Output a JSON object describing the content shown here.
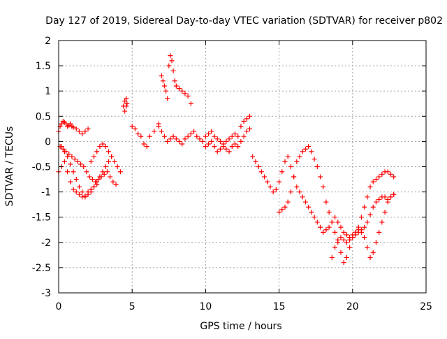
{
  "chart_data": {
    "type": "scatter",
    "title": "Day 127 of 2019, Sidereal Day-to-day VTEC variation (SDTVAR) for receiver p802",
    "xlabel": "GPS time / hours",
    "ylabel": "SDTVAR / TECUs",
    "xlim": [
      0,
      25
    ],
    "ylim": [
      -3,
      2
    ],
    "x_ticks": [
      0,
      5,
      10,
      15,
      20,
      25
    ],
    "x_tick_labels": [
      "0",
      "5",
      "10",
      "15",
      "20",
      "25"
    ],
    "y_ticks": [
      -3,
      -2.5,
      -2,
      -1.5,
      -1,
      -0.5,
      0,
      0.5,
      1,
      1.5,
      2
    ],
    "y_tick_labels": [
      "-3",
      "-2.5",
      "-2",
      "-1.5",
      "-1",
      "-0.5",
      "0",
      "0.5",
      "1",
      "1.5",
      "2"
    ],
    "grid": true,
    "marker": "plus",
    "color": "#ff0000",
    "series": [
      {
        "name": "SDTVAR",
        "x": [
          0.0,
          0.1,
          0.2,
          0.3,
          0.4,
          0.5,
          0.6,
          0.7,
          0.8,
          0.9,
          1.0,
          1.2,
          1.4,
          1.6,
          1.8,
          2.0,
          2.2,
          2.4,
          2.6,
          2.8,
          3.0,
          3.2,
          3.4,
          3.6,
          3.8,
          4.0,
          4.2,
          4.4,
          4.5,
          4.6,
          0.0,
          0.2,
          0.4,
          0.6,
          0.8,
          1.0,
          1.2,
          1.4,
          1.6,
          1.8,
          2.0,
          2.2,
          2.4,
          2.6,
          0.1,
          0.3,
          0.5,
          0.7,
          0.9,
          1.1,
          1.3,
          1.5,
          1.7,
          1.9,
          2.1,
          2.3,
          2.5,
          2.7,
          2.9,
          3.1,
          3.3,
          3.5,
          3.7,
          3.9,
          0.2,
          0.4,
          0.6,
          0.8,
          1.0,
          1.2,
          1.4,
          1.6,
          1.8,
          2.0,
          2.2,
          2.4,
          2.6,
          2.8,
          3.0,
          3.2,
          3.4,
          3.6,
          4.5,
          4.6,
          4.65,
          5.0,
          5.2,
          5.4,
          5.6,
          5.8,
          6.0,
          6.2,
          6.5,
          6.8,
          7.0,
          7.1,
          7.2,
          7.3,
          7.4,
          7.5,
          7.6,
          7.7,
          7.8,
          7.9,
          8.0,
          8.2,
          8.4,
          8.6,
          8.8,
          9.0,
          6.8,
          7.0,
          7.2,
          7.4,
          7.6,
          7.8,
          8.0,
          8.2,
          8.4,
          8.6,
          8.8,
          9.0,
          9.2,
          9.4,
          9.6,
          9.8,
          10.0,
          10.2,
          10.4,
          10.6,
          10.8,
          11.0,
          11.2,
          11.4,
          11.6,
          11.8,
          12.0,
          12.2,
          12.4,
          12.6,
          12.8,
          13.0,
          10.0,
          10.2,
          10.4,
          10.6,
          10.8,
          11.0,
          11.2,
          11.4,
          11.6,
          11.8,
          12.0,
          12.2,
          12.4,
          12.6,
          12.8,
          13.0,
          13.2,
          13.4,
          13.6,
          13.8,
          14.0,
          14.2,
          14.4,
          14.6,
          14.8,
          15.0,
          15.2,
          15.4,
          15.6,
          15.8,
          16.0,
          16.2,
          16.4,
          16.6,
          16.8,
          17.0,
          15.0,
          15.2,
          15.4,
          15.6,
          15.8,
          16.0,
          16.2,
          16.4,
          16.6,
          16.8,
          17.0,
          17.2,
          17.4,
          17.6,
          17.8,
          18.0,
          18.2,
          18.4,
          18.6,
          18.8,
          19.0,
          19.2,
          19.4,
          19.6,
          19.8,
          20.0,
          20.2,
          20.4,
          20.6,
          20.8,
          21.0,
          21.2,
          21.4,
          21.6,
          21.8,
          22.0,
          22.2,
          22.4,
          22.6,
          22.8,
          17.2,
          17.4,
          17.6,
          17.8,
          18.0,
          18.2,
          18.4,
          18.6,
          18.8,
          19.0,
          19.2,
          19.4,
          19.6,
          19.8,
          20.0,
          20.2,
          20.4,
          20.6,
          20.8,
          21.0,
          21.2,
          21.4,
          21.6,
          21.8,
          22.0,
          22.2,
          22.4,
          22.6,
          22.8,
          18.6,
          18.8,
          19.0,
          19.2,
          19.4,
          19.6,
          19.8,
          20.0,
          20.2,
          20.4,
          20.6,
          20.8,
          21.0,
          21.2,
          21.4,
          21.6,
          21.8,
          22.0,
          22.2,
          22.4,
          22.6,
          22.8
        ],
        "y": [
          0.2,
          0.3,
          0.35,
          0.4,
          0.38,
          0.35,
          0.3,
          0.32,
          0.35,
          0.3,
          0.28,
          0.25,
          0.2,
          0.15,
          0.2,
          0.25,
          -0.4,
          -0.3,
          -0.2,
          -0.1,
          -0.05,
          -0.1,
          -0.2,
          -0.3,
          -0.4,
          -0.5,
          -0.6,
          0.7,
          0.8,
          0.85,
          -0.6,
          -0.5,
          -0.4,
          -0.6,
          -0.8,
          -0.95,
          -1.0,
          -1.05,
          -1.1,
          -1.08,
          -1.0,
          -0.95,
          -0.9,
          -0.85,
          -0.1,
          -0.15,
          -0.2,
          -0.25,
          -0.3,
          -0.35,
          -0.4,
          -0.45,
          -0.5,
          -0.6,
          -0.7,
          -0.75,
          -0.8,
          -0.75,
          -0.7,
          -0.65,
          -0.6,
          -0.7,
          -0.8,
          -0.85,
          -0.1,
          -0.2,
          -0.3,
          -0.45,
          -0.6,
          -0.75,
          -0.9,
          -1.0,
          -1.1,
          -1.05,
          -1.0,
          -0.9,
          -0.8,
          -0.7,
          -0.6,
          -0.5,
          -0.4,
          -0.3,
          0.6,
          0.7,
          0.75,
          0.3,
          0.25,
          0.15,
          0.1,
          -0.05,
          -0.1,
          0.1,
          0.2,
          0.35,
          1.3,
          1.2,
          1.1,
          1.0,
          0.85,
          1.5,
          1.7,
          1.6,
          1.4,
          1.2,
          1.1,
          1.05,
          1.0,
          0.95,
          0.9,
          0.75,
          0.3,
          0.2,
          0.1,
          0.0,
          0.05,
          0.1,
          0.05,
          0.0,
          -0.05,
          0.05,
          0.1,
          0.15,
          0.2,
          0.1,
          0.05,
          0.0,
          0.1,
          0.15,
          0.2,
          0.1,
          0.05,
          0.0,
          -0.05,
          0.0,
          0.05,
          0.1,
          0.15,
          0.1,
          0.3,
          0.4,
          0.45,
          0.5,
          -0.1,
          -0.05,
          0.0,
          -0.1,
          -0.2,
          -0.15,
          -0.1,
          -0.15,
          -0.2,
          -0.1,
          -0.05,
          -0.1,
          0.0,
          0.1,
          0.2,
          0.25,
          -0.3,
          -0.4,
          -0.5,
          -0.6,
          -0.7,
          -0.8,
          -0.9,
          -1.0,
          -0.95,
          -0.8,
          -0.6,
          -0.4,
          -0.3,
          -0.5,
          -0.7,
          -0.9,
          -1.0,
          -1.1,
          -1.2,
          -1.3,
          -1.4,
          -1.35,
          -1.3,
          -1.2,
          -1.0,
          -0.7,
          -0.4,
          -0.3,
          -0.2,
          -0.15,
          -0.1,
          -0.2,
          -0.35,
          -0.5,
          -0.7,
          -0.9,
          -1.2,
          -1.4,
          -1.6,
          -1.8,
          -2.0,
          -2.2,
          -2.4,
          -2.3,
          -2.1,
          -1.9,
          -1.8,
          -1.75,
          -1.8,
          -1.9,
          -2.1,
          -2.3,
          -2.2,
          -2.0,
          -1.8,
          -1.6,
          -1.4,
          -1.2,
          -1.1,
          -1.05,
          -1.4,
          -1.5,
          -1.6,
          -1.7,
          -1.8,
          -1.75,
          -1.7,
          -1.6,
          -1.5,
          -1.6,
          -1.7,
          -1.8,
          -1.85,
          -1.9,
          -1.85,
          -1.8,
          -1.7,
          -1.5,
          -1.3,
          -1.1,
          -0.9,
          -0.8,
          -0.75,
          -0.7,
          -0.65,
          -0.6,
          -0.6,
          -0.65,
          -0.7,
          -2.3,
          -2.1,
          -1.95,
          -1.9,
          -1.95,
          -2.0,
          -1.95,
          -1.9,
          -1.85,
          -1.8,
          -1.75,
          -1.7,
          -1.6,
          -1.45,
          -1.3,
          -1.2,
          -1.15,
          -1.1,
          -1.1,
          -1.15,
          -1.1,
          -1.05
        ]
      }
    ]
  }
}
